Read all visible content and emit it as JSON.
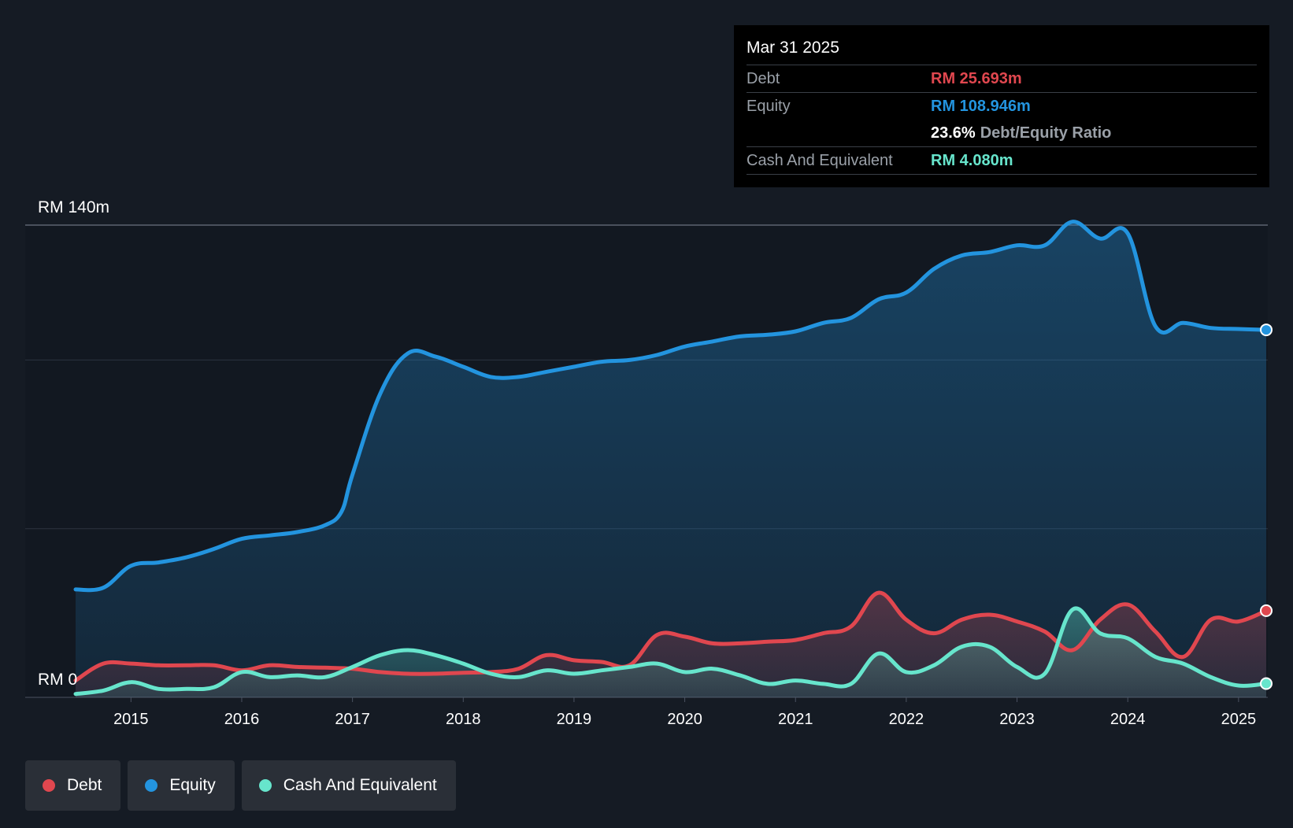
{
  "tooltip": {
    "date": "Mar 31 2025",
    "debt_label": "Debt",
    "debt_value": "RM 25.693m",
    "equity_label": "Equity",
    "equity_value": "RM 108.946m",
    "ratio_value": "23.6%",
    "ratio_label": "Debt/Equity Ratio",
    "cash_label": "Cash And Equivalent",
    "cash_value": "RM 4.080m"
  },
  "legend": [
    {
      "label": "Debt",
      "color": "#e0474f"
    },
    {
      "label": "Equity",
      "color": "#2394df"
    },
    {
      "label": "Cash And Equivalent",
      "color": "#67e5cc"
    }
  ],
  "colors": {
    "debt": "#e0474f",
    "equity": "#2394df",
    "cash": "#67e5cc",
    "background": "#151b24"
  },
  "chart_data": {
    "type": "area",
    "title": "",
    "ylabel_top": "RM 140m",
    "ylabel_bottom": "RM 0",
    "ylim": [
      0,
      140
    ],
    "xlim": [
      2014.5,
      2025.25
    ],
    "x_ticks": [
      2015,
      2016,
      2017,
      2018,
      2019,
      2020,
      2021,
      2022,
      2023,
      2024,
      2025
    ],
    "x_tick_labels": [
      "2015",
      "2016",
      "2017",
      "2018",
      "2019",
      "2020",
      "2021",
      "2022",
      "2023",
      "2024",
      "2025"
    ],
    "gridlines": [
      0,
      50,
      100,
      140
    ],
    "series": [
      {
        "name": "Equity",
        "color": "#2394df",
        "points": [
          [
            2014.5,
            32.0
          ],
          [
            2014.75,
            32.5
          ],
          [
            2015.0,
            39.0
          ],
          [
            2015.25,
            40.0
          ],
          [
            2015.5,
            41.5
          ],
          [
            2015.75,
            44.0
          ],
          [
            2016.0,
            47.0
          ],
          [
            2016.25,
            48.0
          ],
          [
            2016.5,
            49.0
          ],
          [
            2016.75,
            51.0
          ],
          [
            2016.9,
            55.0
          ],
          [
            2017.0,
            66.0
          ],
          [
            2017.25,
            90.0
          ],
          [
            2017.5,
            102.0
          ],
          [
            2017.75,
            101.0
          ],
          [
            2018.0,
            98.0
          ],
          [
            2018.25,
            95.0
          ],
          [
            2018.5,
            95.0
          ],
          [
            2018.75,
            96.5
          ],
          [
            2019.0,
            98.0
          ],
          [
            2019.25,
            99.5
          ],
          [
            2019.5,
            100.0
          ],
          [
            2019.75,
            101.5
          ],
          [
            2020.0,
            104.0
          ],
          [
            2020.25,
            105.5
          ],
          [
            2020.5,
            107.0
          ],
          [
            2020.75,
            107.5
          ],
          [
            2021.0,
            108.5
          ],
          [
            2021.25,
            111.0
          ],
          [
            2021.5,
            112.5
          ],
          [
            2021.75,
            118.0
          ],
          [
            2022.0,
            120.0
          ],
          [
            2022.25,
            127.0
          ],
          [
            2022.5,
            131.0
          ],
          [
            2022.75,
            132.0
          ],
          [
            2023.0,
            134.0
          ],
          [
            2023.25,
            134.0
          ],
          [
            2023.5,
            141.0
          ],
          [
            2023.75,
            136.0
          ],
          [
            2024.0,
            137.5
          ],
          [
            2024.25,
            110.0
          ],
          [
            2024.5,
            111.0
          ],
          [
            2024.75,
            109.5
          ],
          [
            2025.0,
            109.2
          ],
          [
            2025.25,
            108.946
          ]
        ]
      },
      {
        "name": "Debt",
        "color": "#e0474f",
        "points": [
          [
            2014.5,
            5.0
          ],
          [
            2014.75,
            10.0
          ],
          [
            2015.0,
            10.0
          ],
          [
            2015.25,
            9.5
          ],
          [
            2015.5,
            9.5
          ],
          [
            2015.75,
            9.5
          ],
          [
            2016.0,
            8.0
          ],
          [
            2016.25,
            9.5
          ],
          [
            2016.5,
            9.0
          ],
          [
            2016.75,
            8.8
          ],
          [
            2017.0,
            8.5
          ],
          [
            2017.25,
            7.5
          ],
          [
            2017.5,
            7.0
          ],
          [
            2017.75,
            7.0
          ],
          [
            2018.0,
            7.3
          ],
          [
            2018.25,
            7.5
          ],
          [
            2018.5,
            8.5
          ],
          [
            2018.75,
            12.5
          ],
          [
            2019.0,
            11.0
          ],
          [
            2019.25,
            10.5
          ],
          [
            2019.5,
            9.5
          ],
          [
            2019.75,
            18.5
          ],
          [
            2020.0,
            18.0
          ],
          [
            2020.25,
            16.0
          ],
          [
            2020.5,
            16.0
          ],
          [
            2020.75,
            16.5
          ],
          [
            2021.0,
            17.0
          ],
          [
            2021.25,
            19.0
          ],
          [
            2021.5,
            21.0
          ],
          [
            2021.75,
            31.0
          ],
          [
            2022.0,
            23.0
          ],
          [
            2022.25,
            19.0
          ],
          [
            2022.5,
            23.0
          ],
          [
            2022.75,
            24.5
          ],
          [
            2023.0,
            22.5
          ],
          [
            2023.25,
            19.5
          ],
          [
            2023.5,
            14.0
          ],
          [
            2023.75,
            23.0
          ],
          [
            2024.0,
            27.5
          ],
          [
            2024.25,
            19.5
          ],
          [
            2024.5,
            12.0
          ],
          [
            2024.75,
            23.0
          ],
          [
            2025.0,
            22.5
          ],
          [
            2025.25,
            25.693
          ]
        ]
      },
      {
        "name": "Cash And Equivalent",
        "color": "#67e5cc",
        "points": [
          [
            2014.5,
            1.0
          ],
          [
            2014.75,
            2.0
          ],
          [
            2015.0,
            4.5
          ],
          [
            2015.25,
            2.5
          ],
          [
            2015.5,
            2.5
          ],
          [
            2015.75,
            3.0
          ],
          [
            2016.0,
            7.5
          ],
          [
            2016.25,
            6.0
          ],
          [
            2016.5,
            6.5
          ],
          [
            2016.75,
            6.0
          ],
          [
            2017.0,
            9.0
          ],
          [
            2017.25,
            12.5
          ],
          [
            2017.5,
            14.0
          ],
          [
            2017.75,
            12.5
          ],
          [
            2018.0,
            10.0
          ],
          [
            2018.25,
            7.0
          ],
          [
            2018.5,
            6.0
          ],
          [
            2018.75,
            8.0
          ],
          [
            2019.0,
            7.0
          ],
          [
            2019.25,
            8.0
          ],
          [
            2019.5,
            9.0
          ],
          [
            2019.75,
            10.0
          ],
          [
            2020.0,
            7.5
          ],
          [
            2020.25,
            8.5
          ],
          [
            2020.5,
            6.5
          ],
          [
            2020.75,
            4.0
          ],
          [
            2021.0,
            5.0
          ],
          [
            2021.25,
            4.0
          ],
          [
            2021.5,
            4.0
          ],
          [
            2021.75,
            13.0
          ],
          [
            2022.0,
            7.5
          ],
          [
            2022.25,
            9.5
          ],
          [
            2022.5,
            15.0
          ],
          [
            2022.75,
            15.0
          ],
          [
            2023.0,
            9.0
          ],
          [
            2023.25,
            7.0
          ],
          [
            2023.5,
            26.0
          ],
          [
            2023.75,
            19.0
          ],
          [
            2024.0,
            17.5
          ],
          [
            2024.25,
            12.0
          ],
          [
            2024.5,
            10.0
          ],
          [
            2024.75,
            6.0
          ],
          [
            2025.0,
            3.5
          ],
          [
            2025.25,
            4.08
          ]
        ]
      }
    ]
  }
}
